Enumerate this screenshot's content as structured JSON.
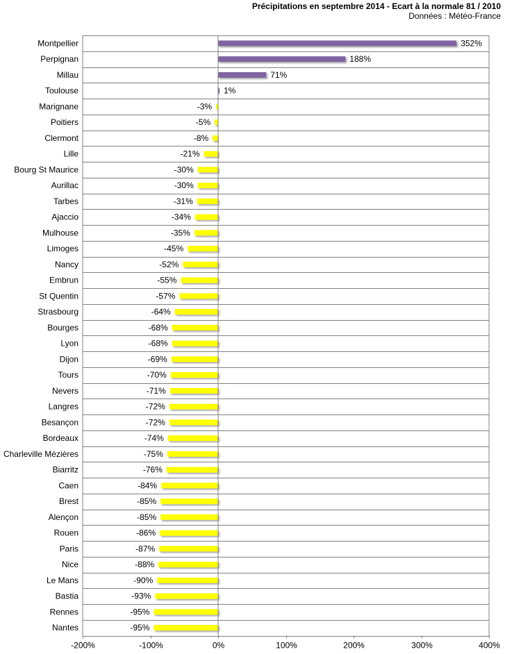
{
  "chart_data": {
    "type": "bar",
    "orientation": "horizontal",
    "title": "Précipitations en septembre 2014 - Ecart à la normale 81 / 2010",
    "subtitle": "Données : Météo-France",
    "xlabel": "",
    "ylabel": "",
    "xlim": [
      -200,
      400
    ],
    "xticks": [
      -200,
      -100,
      0,
      100,
      200,
      300,
      400
    ],
    "xtick_labels": [
      "-200%",
      "-100%",
      "0%",
      "100%",
      "200%",
      "300%",
      "400%"
    ],
    "grid": "horizontal",
    "positive_color": "#8064a2",
    "negative_color": "#ffff00",
    "categories": [
      "Montpellier",
      "Perpignan",
      "Millau",
      "Toulouse",
      "Marignane",
      "Poitiers",
      "Clermont",
      "Lille",
      "Bourg St Maurice",
      "Aurillac",
      "Tarbes",
      "Ajaccio",
      "Mulhouse",
      "Limoges",
      "Nancy",
      "Embrun",
      "St Quentin",
      "Strasbourg",
      "Bourges",
      "Lyon",
      "Dijon",
      "Tours",
      "Nevers",
      "Langres",
      "Besançon",
      "Bordeaux",
      "Charleville Mézières",
      "Biarritz",
      "Caen",
      "Brest",
      "Alençon",
      "Rouen",
      "Paris",
      "Nice",
      "Le Mans",
      "Bastia",
      "Rennes",
      "Nantes"
    ],
    "values": [
      352,
      188,
      71,
      1,
      -3,
      -5,
      -8,
      -21,
      -30,
      -30,
      -31,
      -34,
      -35,
      -45,
      -52,
      -55,
      -57,
      -64,
      -68,
      -68,
      -69,
      -70,
      -71,
      -72,
      -72,
      -74,
      -75,
      -76,
      -84,
      -85,
      -85,
      -86,
      -87,
      -88,
      -90,
      -93,
      -95,
      -95
    ],
    "value_labels": [
      "352%",
      "188%",
      "71%",
      "1%",
      "-3%",
      "-5%",
      "-8%",
      "-21%",
      "-30%",
      "-30%",
      "-31%",
      "-34%",
      "-35%",
      "-45%",
      "-52%",
      "-55%",
      "-57%",
      "-64%",
      "-68%",
      "-68%",
      "-69%",
      "-70%",
      "-71%",
      "-72%",
      "-72%",
      "-74%",
      "-75%",
      "-76%",
      "-84%",
      "-85%",
      "-85%",
      "-86%",
      "-87%",
      "-88%",
      "-90%",
      "-93%",
      "-95%",
      "-95%"
    ]
  }
}
